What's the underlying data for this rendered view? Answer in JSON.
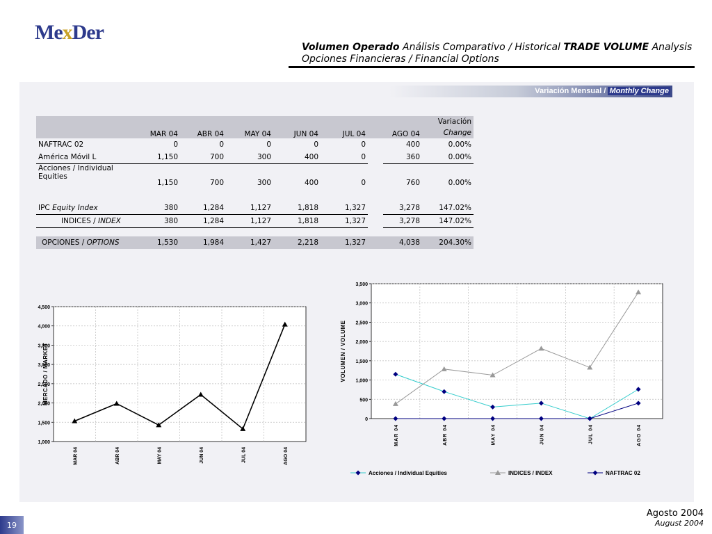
{
  "logo": {
    "part1": "Me",
    "part2": "x",
    "part3": "Der"
  },
  "header": {
    "t1": "Volumen Operado",
    "t2": " Análisis Comparativo / Historical ",
    "t3": "TRADE VOLUME",
    "t4": " Analysis",
    "line2": "Opciones Financieras / Financial Options"
  },
  "banner": {
    "es": "Variación Mensual /",
    "en": "Monthly Change"
  },
  "table": {
    "change_header_es": "Variación",
    "change_header_en": "Change",
    "columns": [
      "MAR 04",
      "ABR 04",
      "MAY 04",
      "JUN 04",
      "JUL 04",
      "AGO 04"
    ],
    "rows": [
      {
        "label": "NAFTRAC 02",
        "values": [
          "0",
          "0",
          "0",
          "0",
          "0",
          "400"
        ],
        "change": "0.00%"
      },
      {
        "label": "América Móvil L",
        "values": [
          "1,150",
          "700",
          "300",
          "400",
          "0",
          "360"
        ],
        "change": "0.00%"
      },
      {
        "label": "Acciones / Individual",
        "label2": "Equities",
        "values": [
          "1,150",
          "700",
          "300",
          "400",
          "0",
          "760"
        ],
        "change": "0.00%"
      },
      {
        "label": "IPC",
        "label_it": "Equity Index",
        "values": [
          "380",
          "1,284",
          "1,127",
          "1,818",
          "1,327",
          "3,278"
        ],
        "change": "147.02%"
      },
      {
        "label": "INDICES /",
        "label_it": "INDEX",
        "values": [
          "380",
          "1,284",
          "1,127",
          "1,818",
          "1,327",
          "3,278"
        ],
        "change": "147.02%"
      },
      {
        "label": "OPCIONES /",
        "label_it": "OPTIONS",
        "values": [
          "1,530",
          "1,984",
          "1,427",
          "2,218",
          "1,327",
          "4,038"
        ],
        "change": "204.30%"
      }
    ]
  },
  "chart_data": [
    {
      "type": "line",
      "categories": [
        "MAR 04",
        "ABR 04",
        "MAY 04",
        "JUN 04",
        "JUL 04",
        "AGO 04"
      ],
      "series": [
        {
          "values": [
            1530,
            1984,
            1427,
            2218,
            1327,
            4038
          ],
          "color": "#000000"
        }
      ],
      "ylabel": "MERCADO / MARKET",
      "ylim": [
        1000,
        4500
      ],
      "yticks": [
        "1,000",
        "1,500",
        "2,000",
        "2,500",
        "3,000",
        "3,500",
        "4,000",
        "4,500"
      ],
      "grid": true
    },
    {
      "type": "line",
      "categories": [
        "MAR 04",
        "ABR 04",
        "MAY 04",
        "JUN 04",
        "JUL 04",
        "AGO 04"
      ],
      "series": [
        {
          "name": "Acciones / Individual Equities",
          "values": [
            1150,
            700,
            300,
            400,
            0,
            760
          ],
          "color": "#33cccc"
        },
        {
          "name": "INDICES / INDEX",
          "values": [
            380,
            1284,
            1127,
            1818,
            1327,
            3278
          ],
          "color": "#999999"
        },
        {
          "name": "NAFTRAC 02",
          "values": [
            0,
            0,
            0,
            0,
            0,
            400
          ],
          "color": "#000080"
        }
      ],
      "ylabel": "VOLUMEN / VOLUME",
      "ylim": [
        0,
        3500
      ],
      "yticks": [
        "0",
        "500",
        "1,000",
        "1,500",
        "2,000",
        "2,500",
        "3,000",
        "3,500"
      ],
      "grid": true,
      "legend": "bottom"
    }
  ],
  "footer": {
    "page": "19",
    "date_es": "Agosto 2004",
    "date_en": "August 2004"
  }
}
